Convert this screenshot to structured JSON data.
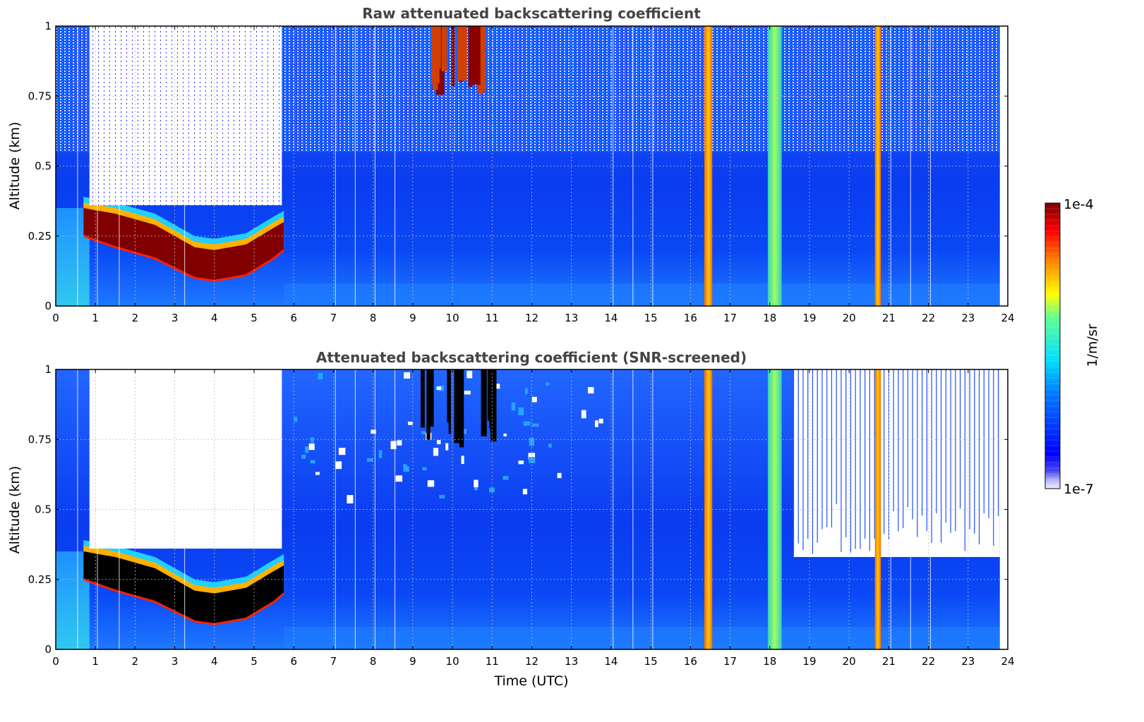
{
  "chart_data": [
    {
      "type": "heatmap",
      "title": "Raw attenuated backscattering coefficient",
      "xlabel": "",
      "ylabel": "Altitude (km)",
      "xlim": [
        0,
        24
      ],
      "ylim": [
        0,
        1
      ],
      "xticks": [
        "0",
        "1",
        "2",
        "3",
        "4",
        "5",
        "6",
        "7",
        "8",
        "9",
        "10",
        "11",
        "12",
        "13",
        "14",
        "15",
        "16",
        "17",
        "18",
        "19",
        "20",
        "21",
        "22",
        "23",
        "24"
      ],
      "yticks": [
        "0",
        "0.25",
        "0.5",
        "0.75",
        "1"
      ],
      "grid": true,
      "screened": false,
      "features": [
        {
          "kind": "cloud_layer",
          "x": [
            0.7,
            5.75
          ],
          "base_top_km": [
            [
              0.7,
              0.25,
              0.35
            ],
            [
              1.5,
              0.21,
              0.33
            ],
            [
              2.5,
              0.17,
              0.29
            ],
            [
              3.5,
              0.1,
              0.21
            ],
            [
              4.0,
              0.09,
              0.2
            ],
            [
              4.8,
              0.11,
              0.22
            ],
            [
              5.5,
              0.17,
              0.28
            ],
            [
              5.75,
              0.2,
              0.3
            ]
          ]
        },
        {
          "kind": "clear_air_above_cloud",
          "x": [
            0.85,
            5.7
          ]
        },
        {
          "kind": "high_cloud",
          "x": [
            9.2,
            11.4
          ],
          "alt_km": [
            0.75,
            1.0
          ]
        },
        {
          "kind": "precipitation_column",
          "x": [
            16.35,
            16.55
          ],
          "alt_km": [
            0,
            1
          ]
        },
        {
          "kind": "precipitation_column",
          "x": [
            17.95,
            18.3
          ],
          "alt_km": [
            0,
            1
          ]
        },
        {
          "kind": "precipitation_column",
          "x": [
            20.65,
            20.8
          ],
          "alt_km": [
            0,
            1
          ]
        }
      ]
    },
    {
      "type": "heatmap",
      "title": "Attenuated backscattering coefficient (SNR-screened)",
      "xlabel": "Time (UTC)",
      "ylabel": "Altitude (km)",
      "xlim": [
        0,
        24
      ],
      "ylim": [
        0,
        1
      ],
      "xticks": [
        "0",
        "1",
        "2",
        "3",
        "4",
        "5",
        "6",
        "7",
        "8",
        "9",
        "10",
        "11",
        "12",
        "13",
        "14",
        "15",
        "16",
        "17",
        "18",
        "19",
        "20",
        "21",
        "22",
        "23",
        "24"
      ],
      "yticks": [
        "0",
        "0.25",
        "0.5",
        "0.75",
        "1"
      ],
      "grid": true,
      "screened": true,
      "features": [
        {
          "kind": "cloud_layer_saturated",
          "x": [
            0.7,
            5.75
          ]
        },
        {
          "kind": "clear_air_above_cloud",
          "x": [
            0.85,
            5.7
          ]
        },
        {
          "kind": "screened_region_above_km",
          "x": [
            18.6,
            23.8
          ],
          "alt_km": 0.33
        }
      ]
    }
  ],
  "colorbar": {
    "label": "1/m/sr",
    "max_label": "1e-4",
    "min_label": "1e-7",
    "scale": "log",
    "colormap": "jet"
  },
  "colors": {
    "title": "#444444",
    "grid": "#bbbbbb",
    "saturated": "#000000"
  }
}
